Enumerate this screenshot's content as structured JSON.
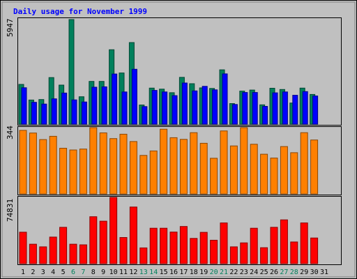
{
  "chart_data": [
    {
      "type": "bar",
      "title": "Daily usage for November 1999",
      "categories": [
        "1",
        "2",
        "3",
        "4",
        "5",
        "6",
        "7",
        "8",
        "9",
        "10",
        "11",
        "12",
        "13",
        "14",
        "15",
        "16",
        "17",
        "18",
        "19",
        "20",
        "21",
        "22",
        "23",
        "24",
        "25",
        "26",
        "27",
        "28",
        "29",
        "30",
        "31"
      ],
      "weekend_days": [
        "6",
        "7",
        "13",
        "14",
        "20",
        "21",
        "27",
        "28"
      ],
      "ymax_label": "5947",
      "ylim": [
        0,
        5947
      ],
      "grid": false,
      "series": [
        {
          "color": "#00805c",
          "values": [
            2260,
            1370,
            1400,
            2650,
            2220,
            5947,
            1560,
            2430,
            2430,
            4230,
            2910,
            4640,
            1090,
            2050,
            1990,
            1790,
            2660,
            2300,
            2060,
            2030,
            3090,
            1170,
            1880,
            1940,
            1100,
            2040,
            1970,
            1200,
            2050,
            1690,
            0
          ]
        },
        {
          "color": "#0000ff",
          "values": [
            2070,
            1240,
            1140,
            1440,
            1770,
            1380,
            1260,
            2100,
            2120,
            2850,
            1830,
            3120,
            1000,
            1920,
            1830,
            1620,
            2340,
            1890,
            2150,
            1950,
            2860,
            1120,
            1800,
            1800,
            1010,
            1780,
            1830,
            1640,
            1850,
            1600,
            0
          ]
        }
      ]
    },
    {
      "type": "bar",
      "ymax_label": "344",
      "ylim": [
        0,
        344
      ],
      "grid": false,
      "series": [
        {
          "color": "#ff8000",
          "values": [
            330,
            316,
            282,
            299,
            237,
            228,
            233,
            344,
            317,
            287,
            310,
            272,
            200,
            223,
            336,
            292,
            283,
            318,
            263,
            185,
            327,
            249,
            344,
            258,
            206,
            186,
            246,
            214,
            318,
            280,
            0
          ]
        }
      ]
    },
    {
      "type": "bar",
      "ymax_label": "74831",
      "ylim": [
        0,
        74831
      ],
      "grid": false,
      "series": [
        {
          "color": "#ff0000",
          "values": [
            35500,
            22000,
            19000,
            30000,
            41000,
            22000,
            21300,
            53000,
            48000,
            74831,
            29500,
            64000,
            17800,
            40000,
            40000,
            35700,
            42000,
            28500,
            35400,
            26500,
            46000,
            19000,
            23500,
            40000,
            18000,
            41000,
            49500,
            24500,
            46000,
            29000,
            0
          ]
        }
      ]
    }
  ],
  "colors": {
    "weekday_label": "#000000",
    "weekend_label": "#00805c",
    "title": "#0000ff"
  }
}
